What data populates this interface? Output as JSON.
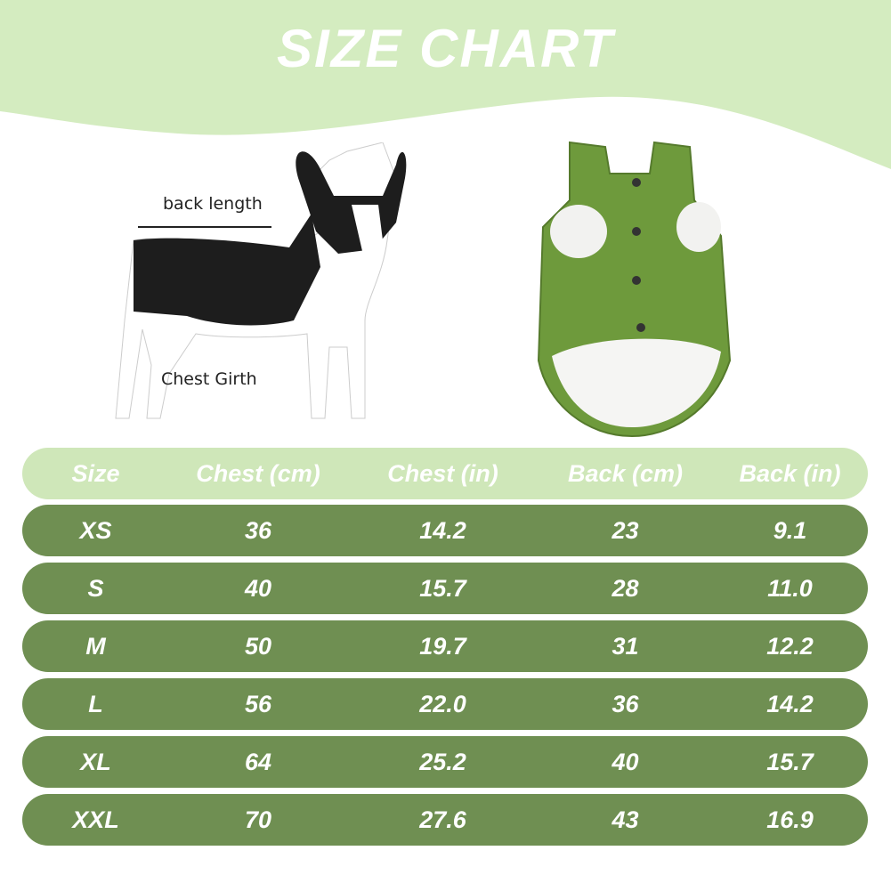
{
  "title": "SIZE CHART",
  "labels": {
    "back_length": "back length",
    "chest_girth": "Chest Girth"
  },
  "colors": {
    "banner": "#d4ecc0",
    "header_row": "#cfe7b9",
    "data_row": "#6f8f52",
    "vest": "#6e9a3c"
  },
  "table": {
    "headers": [
      "Size",
      "Chest (cm)",
      "Chest (in)",
      "Back (cm)",
      "Back (in)"
    ],
    "rows": [
      [
        "XS",
        "36",
        "14.2",
        "23",
        "9.1"
      ],
      [
        "S",
        "40",
        "15.7",
        "28",
        "11.0"
      ],
      [
        "M",
        "50",
        "19.7",
        "31",
        "12.2"
      ],
      [
        "L",
        "56",
        "22.0",
        "36",
        "14.2"
      ],
      [
        "XL",
        "64",
        "25.2",
        "40",
        "15.7"
      ],
      [
        "XXL",
        "70",
        "27.6",
        "43",
        "16.9"
      ]
    ]
  }
}
